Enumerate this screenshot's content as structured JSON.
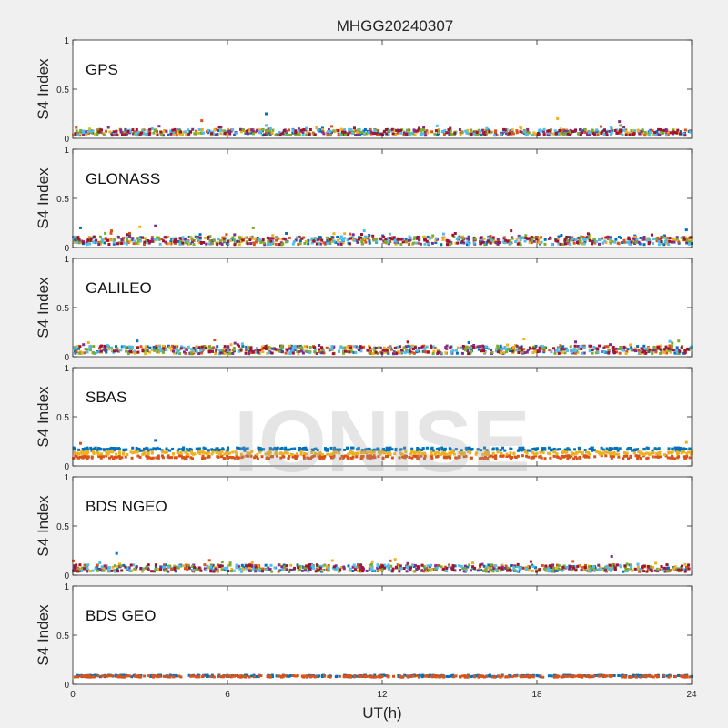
{
  "figure": {
    "title": "MHGG20240307",
    "xlabel": "UT(h)",
    "watermark": "IONISE"
  },
  "series_colors": [
    "#0072BD",
    "#D95319",
    "#EDB120",
    "#7E2F8E",
    "#77AC30",
    "#4DBEEE",
    "#A2142F"
  ],
  "chart_data": [
    {
      "type": "scatter",
      "panel_label": "GPS",
      "ylabel": "S4 Index",
      "xlim": [
        0,
        24
      ],
      "ylim": [
        0,
        1
      ],
      "yticks": [
        0,
        0.5,
        1
      ],
      "yticklabels": [
        "0",
        "0.5",
        "1"
      ],
      "xticks": [
        0,
        6,
        12,
        18,
        24
      ],
      "grid": false,
      "series_count": 7,
      "baseline": 0.06,
      "spread": 0.03,
      "peak_points": [
        {
          "x": 7.5,
          "y": 0.25
        },
        {
          "x": 5.0,
          "y": 0.18
        },
        {
          "x": 18.8,
          "y": 0.2
        },
        {
          "x": 21.2,
          "y": 0.17
        }
      ]
    },
    {
      "type": "scatter",
      "panel_label": "GLONASS",
      "ylabel": "S4 Index",
      "xlim": [
        0,
        24
      ],
      "ylim": [
        0,
        1
      ],
      "yticks": [
        0,
        0.5,
        1
      ],
      "yticklabels": [
        "0",
        "0.5",
        "1"
      ],
      "xticks": [
        0,
        6,
        12,
        18,
        24
      ],
      "grid": false,
      "series_count": 7,
      "baseline": 0.07,
      "spread": 0.04,
      "peak_points": [
        {
          "x": 0.3,
          "y": 0.2
        },
        {
          "x": 1.5,
          "y": 0.17
        },
        {
          "x": 2.6,
          "y": 0.21
        },
        {
          "x": 3.2,
          "y": 0.22
        },
        {
          "x": 7.0,
          "y": 0.2
        },
        {
          "x": 11.3,
          "y": 0.17
        },
        {
          "x": 17.0,
          "y": 0.17
        },
        {
          "x": 23.8,
          "y": 0.18
        }
      ]
    },
    {
      "type": "scatter",
      "panel_label": "GALILEO",
      "ylabel": "S4 Index",
      "xlim": [
        0,
        24
      ],
      "ylim": [
        0,
        1
      ],
      "yticks": [
        0,
        0.5,
        1
      ],
      "yticklabels": [
        "0",
        "0.5",
        "1"
      ],
      "xticks": [
        0,
        6,
        12,
        18,
        24
      ],
      "grid": false,
      "series_count": 7,
      "baseline": 0.07,
      "spread": 0.04,
      "peak_points": [
        {
          "x": 2.5,
          "y": 0.16
        },
        {
          "x": 5.5,
          "y": 0.17
        },
        {
          "x": 17.5,
          "y": 0.18
        },
        {
          "x": 19.5,
          "y": 0.15
        },
        {
          "x": 23.5,
          "y": 0.16
        }
      ]
    },
    {
      "type": "scatter",
      "panel_label": "SBAS",
      "ylabel": "S4 Index",
      "xlim": [
        0,
        24
      ],
      "ylim": [
        0,
        1
      ],
      "yticks": [
        0,
        0.5,
        1
      ],
      "yticklabels": [
        "0",
        "0.5",
        "1"
      ],
      "xticks": [
        0,
        6,
        12,
        18,
        24
      ],
      "grid": false,
      "series_count": 3,
      "band_levels": [
        0.17,
        0.09,
        0.13
      ],
      "spread": 0.015,
      "peak_points": [
        {
          "x": 3.2,
          "y": 0.26
        },
        {
          "x": 0.3,
          "y": 0.23
        },
        {
          "x": 23.8,
          "y": 0.24
        }
      ]
    },
    {
      "type": "scatter",
      "panel_label": "BDS NGEO",
      "ylabel": "S4 Index",
      "xlim": [
        0,
        24
      ],
      "ylim": [
        0,
        1
      ],
      "yticks": [
        0,
        0.5,
        1
      ],
      "yticklabels": [
        "0",
        "0.5",
        "1"
      ],
      "xticks": [
        0,
        6,
        12,
        18,
        24
      ],
      "grid": false,
      "series_count": 7,
      "baseline": 0.07,
      "spread": 0.035,
      "peak_points": [
        {
          "x": 1.7,
          "y": 0.22
        },
        {
          "x": 5.3,
          "y": 0.15
        },
        {
          "x": 12.5,
          "y": 0.16
        },
        {
          "x": 20.9,
          "y": 0.19
        }
      ]
    },
    {
      "type": "scatter",
      "panel_label": "BDS GEO",
      "ylabel": "S4 Index",
      "xlim": [
        0,
        24
      ],
      "ylim": [
        0,
        1
      ],
      "yticks": [
        0,
        0.5,
        1
      ],
      "yticklabels": [
        "0",
        "0.5",
        "1"
      ],
      "xticks": [
        0,
        6,
        12,
        18,
        24
      ],
      "xticklabels": [
        "0",
        "6",
        "12",
        "18",
        "24"
      ],
      "grid": false,
      "series_count": 2,
      "band_levels": [
        0.085,
        0.08
      ],
      "spread": 0.008,
      "peak_points": []
    }
  ]
}
